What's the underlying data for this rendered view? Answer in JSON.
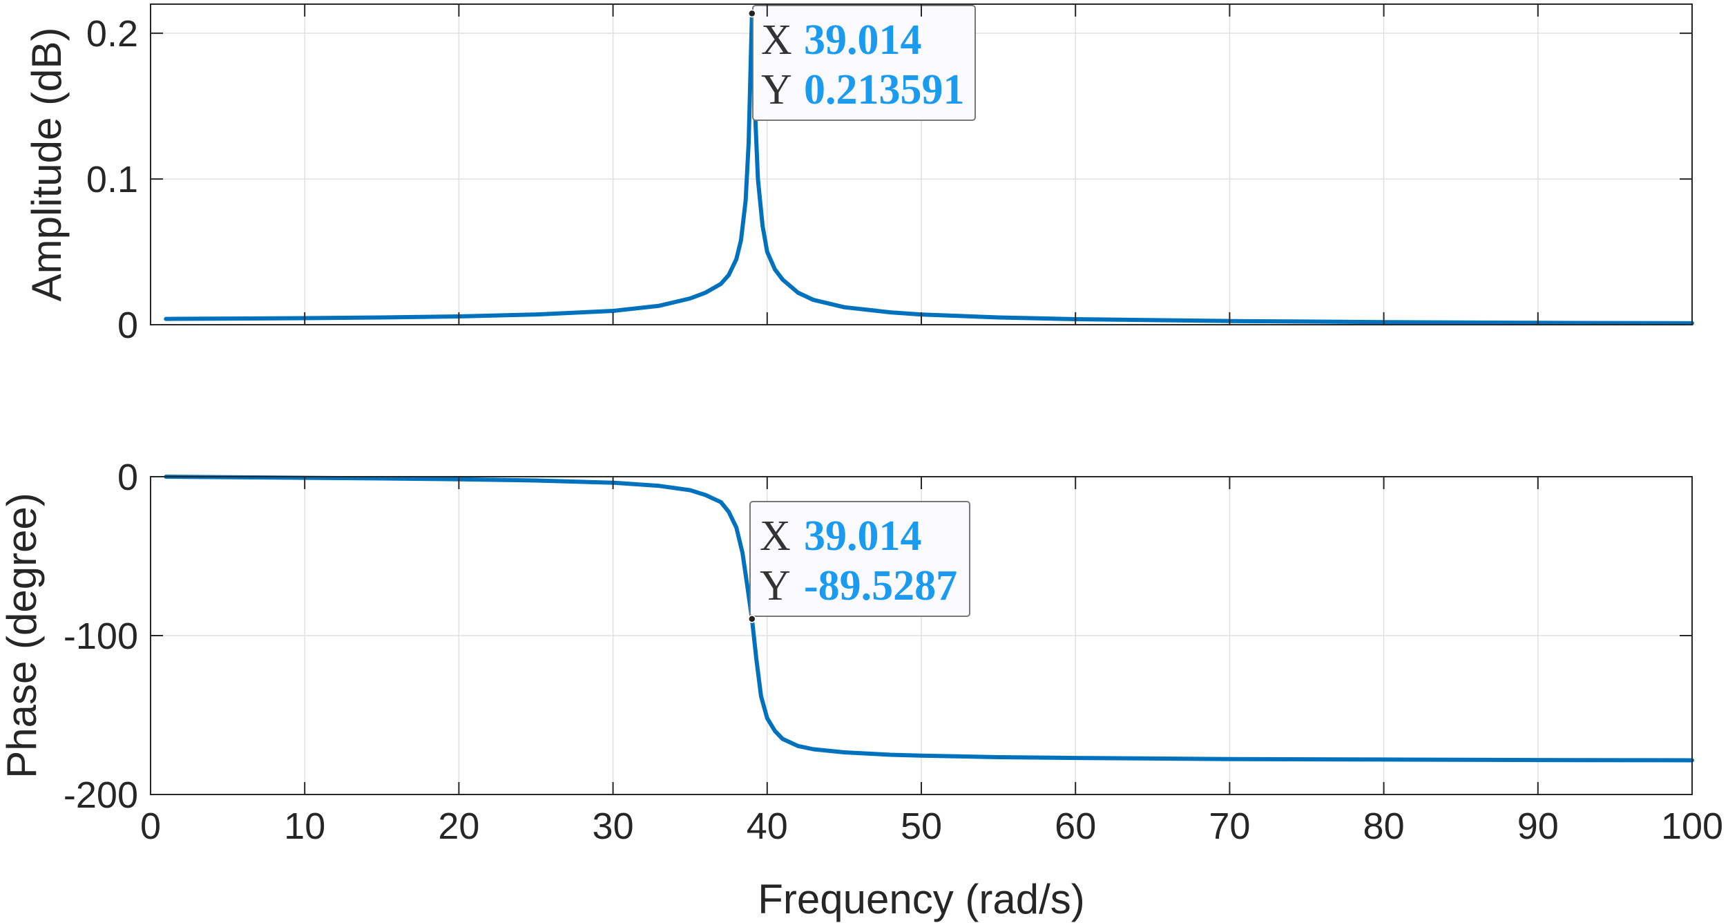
{
  "chart_data": [
    {
      "type": "line",
      "ylabel": "Amplitude (dB)",
      "xlim": [
        0,
        100
      ],
      "ylim": [
        0,
        0.22
      ],
      "y_ticks": [
        "0",
        "0.1",
        "0.2"
      ],
      "y_tick_values": [
        0,
        0.1,
        0.2
      ],
      "grid": true,
      "series": [
        {
          "x": [
            1,
            5,
            10,
            15,
            20,
            25,
            30,
            33,
            35,
            36,
            37,
            37.5,
            38,
            38.3,
            38.6,
            38.8,
            39.014,
            39.2,
            39.4,
            39.7,
            40,
            40.5,
            41,
            42,
            43,
            45,
            48,
            50,
            55,
            60,
            70,
            80,
            90,
            100
          ],
          "y": [
            0.004,
            0.0042,
            0.0045,
            0.005,
            0.0057,
            0.007,
            0.0095,
            0.013,
            0.018,
            0.022,
            0.028,
            0.034,
            0.045,
            0.058,
            0.085,
            0.125,
            0.213591,
            0.15,
            0.1,
            0.068,
            0.05,
            0.038,
            0.031,
            0.022,
            0.017,
            0.012,
            0.0085,
            0.007,
            0.005,
            0.0038,
            0.0025,
            0.0018,
            0.0013,
            0.001
          ],
          "color": "#0072BD"
        }
      ],
      "datatip": {
        "x_key": "X",
        "x_value": "39.014",
        "y_key": "Y",
        "y_value": "0.213591"
      }
    },
    {
      "type": "line",
      "xlabel": "Frequency (rad/s)",
      "ylabel": "Phase (degree)",
      "xlim": [
        0,
        100
      ],
      "ylim": [
        -200,
        0
      ],
      "x_ticks": [
        "0",
        "10",
        "20",
        "30",
        "40",
        "50",
        "60",
        "70",
        "80",
        "90",
        "100"
      ],
      "x_tick_values": [
        0,
        10,
        20,
        30,
        40,
        50,
        60,
        70,
        80,
        90,
        100
      ],
      "y_ticks": [
        "0",
        "-100",
        "-200"
      ],
      "y_tick_values": [
        0,
        -100,
        -200
      ],
      "grid": true,
      "series": [
        {
          "x": [
            1,
            5,
            10,
            15,
            20,
            25,
            30,
            33,
            35,
            36,
            37,
            37.5,
            38,
            38.4,
            38.7,
            39.014,
            39.3,
            39.6,
            40,
            40.5,
            41,
            42,
            43,
            45,
            48,
            50,
            55,
            60,
            70,
            80,
            90,
            100
          ],
          "y": [
            0,
            -0.3,
            -0.7,
            -1.1,
            -1.6,
            -2.4,
            -3.8,
            -5.8,
            -8.5,
            -11.5,
            -16,
            -22,
            -32,
            -48,
            -68,
            -89.5287,
            -115,
            -138,
            -152,
            -160,
            -165,
            -169.5,
            -171.5,
            -173.5,
            -175,
            -175.5,
            -176.5,
            -177,
            -177.7,
            -178,
            -178.3,
            -178.5
          ],
          "color": "#0072BD"
        }
      ],
      "datatip": {
        "x_key": "X",
        "x_value": "39.014",
        "y_key": "Y",
        "y_value": "-89.5287"
      }
    }
  ],
  "colors": {
    "line": "#0072BD",
    "datatip_value": "#1A9BF0",
    "grid": "#E0E0E0"
  }
}
